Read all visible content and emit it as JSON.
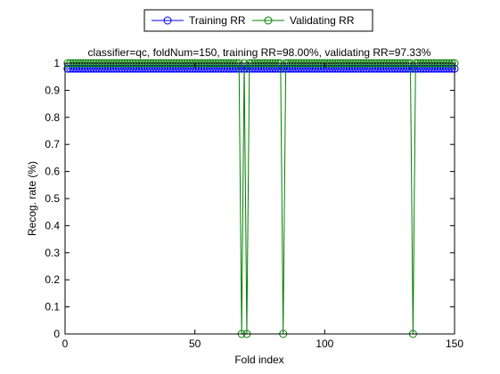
{
  "chart_data": {
    "type": "line",
    "title": "classifier=qc, foldNum=150, training RR=98.00%, validating RR=97.33%",
    "xlabel": "Fold index",
    "ylabel": "Recog. rate (%)",
    "xlim": [
      0,
      150
    ],
    "ylim": [
      0,
      1
    ],
    "xticks": [
      0,
      50,
      100,
      150
    ],
    "yticks": [
      0,
      0.1,
      0.2,
      0.3,
      0.4,
      0.5,
      0.6,
      0.7,
      0.8,
      0.9,
      1
    ],
    "grid": false,
    "legend_position": "top-center",
    "x": {
      "start": 1,
      "end": 150,
      "step": 1
    },
    "series": [
      {
        "name": "Training RR",
        "color": "#0000ff",
        "marker": "circle",
        "constant": 0.98,
        "overrides": []
      },
      {
        "name": "Validating RR",
        "color": "#008000",
        "marker": "circle",
        "constant": 1.0,
        "overrides": [
          {
            "x": 68,
            "y": 0
          },
          {
            "x": 70,
            "y": 0
          },
          {
            "x": 84,
            "y": 0
          },
          {
            "x": 134,
            "y": 0
          }
        ]
      }
    ]
  }
}
